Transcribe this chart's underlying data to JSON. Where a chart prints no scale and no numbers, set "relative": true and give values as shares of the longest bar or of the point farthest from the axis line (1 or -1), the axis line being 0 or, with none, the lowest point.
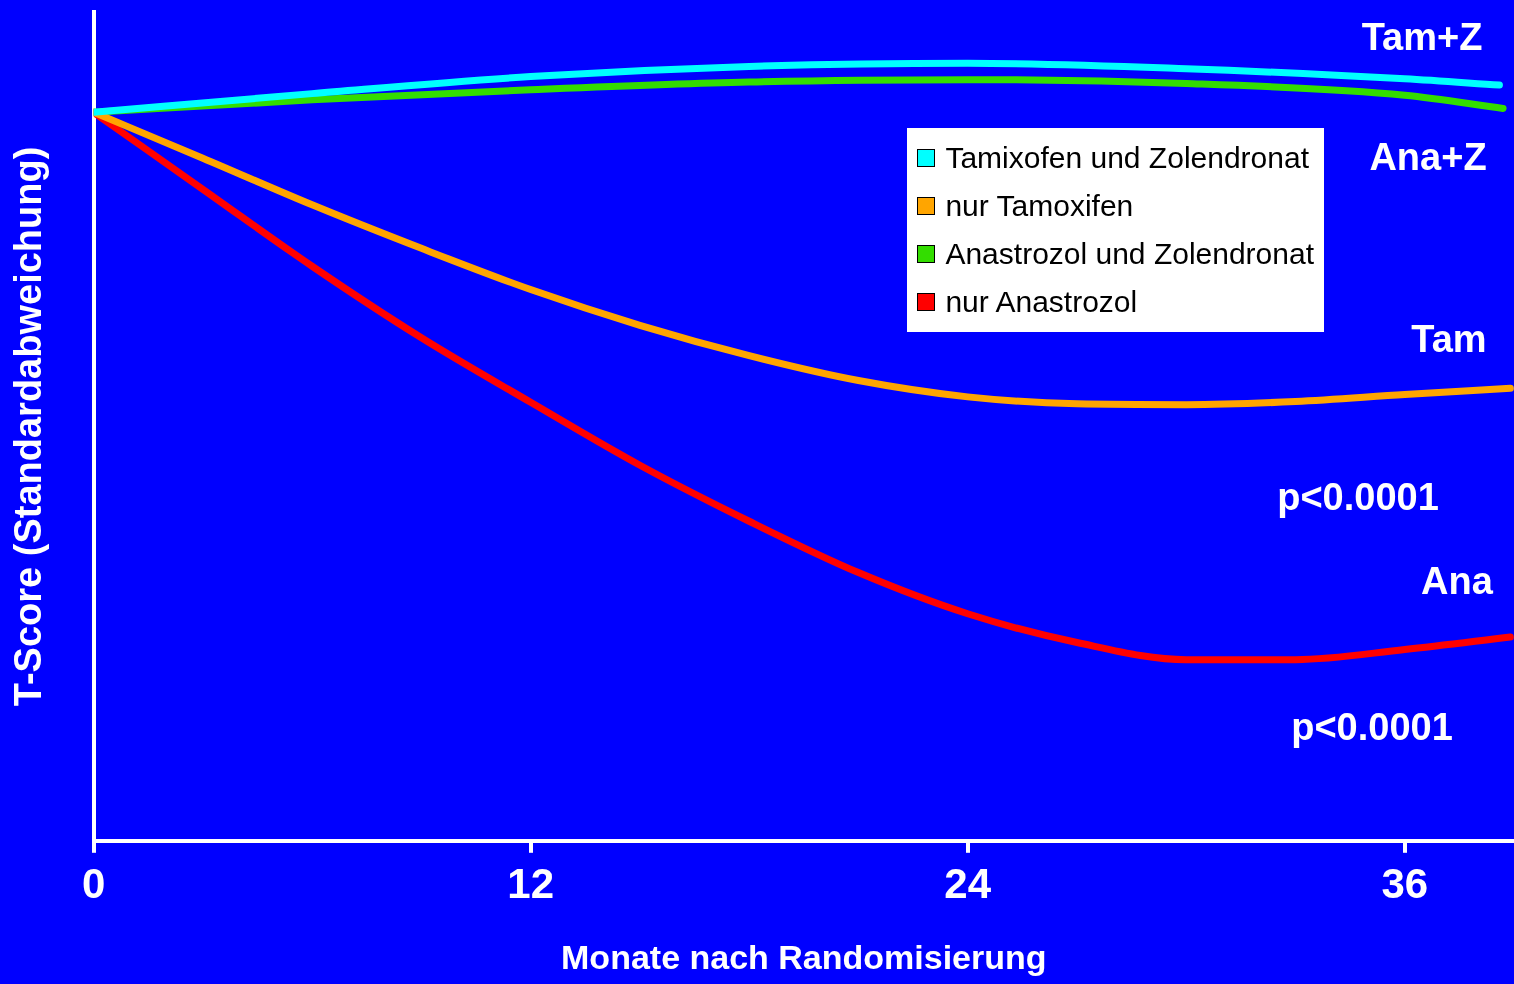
{
  "chart_data": {
    "type": "line",
    "xlabel": "Monate nach Randomisierung",
    "ylabel": "T-Score (Standardabweichung)",
    "relative": true,
    "xlim": [
      0,
      39
    ],
    "xticks": [
      0,
      12,
      24,
      36
    ],
    "legend": "top right",
    "grid": false,
    "marker": "none",
    "line_style": "solid",
    "series": [
      {
        "name": "Tamixofen und Zolendronat",
        "color": "#00ffff",
        "x": [
          0,
          6,
          12,
          18,
          24,
          30,
          36,
          38.6
        ],
        "values": [
          0.937,
          0.961,
          0.983,
          0.996,
          1.0,
          0.993,
          0.98,
          0.972
        ]
      },
      {
        "name": "nur Tamoxifen",
        "color": "#ffa500",
        "x": [
          0,
          3,
          6,
          9,
          12,
          15,
          18,
          21,
          24,
          27,
          30,
          33,
          36,
          38.9
        ],
        "values": [
          0.937,
          0.878,
          0.818,
          0.762,
          0.709,
          0.663,
          0.624,
          0.592,
          0.571,
          0.562,
          0.561,
          0.565,
          0.574,
          0.582
        ]
      },
      {
        "name": "Anastrozol und Zolendronat",
        "color": "#33dd00",
        "x": [
          0,
          6,
          12,
          18,
          24,
          30,
          36,
          38.7
        ],
        "values": [
          0.937,
          0.953,
          0.966,
          0.976,
          0.979,
          0.974,
          0.959,
          0.942
        ]
      },
      {
        "name": "nur Anastrozol",
        "color": "#ff0000",
        "x": [
          0,
          3,
          6,
          9,
          12,
          15,
          18,
          21,
          24,
          27,
          30,
          33,
          36,
          38.9
        ],
        "values": [
          0.937,
          0.838,
          0.739,
          0.647,
          0.564,
          0.483,
          0.411,
          0.345,
          0.292,
          0.255,
          0.233,
          0.233,
          0.246,
          0.262
        ]
      }
    ],
    "annotations": [
      "Tam+Z",
      "Ana+Z",
      "Tam",
      "Ana",
      "p<0.0001",
      "p<0.0001"
    ]
  }
}
